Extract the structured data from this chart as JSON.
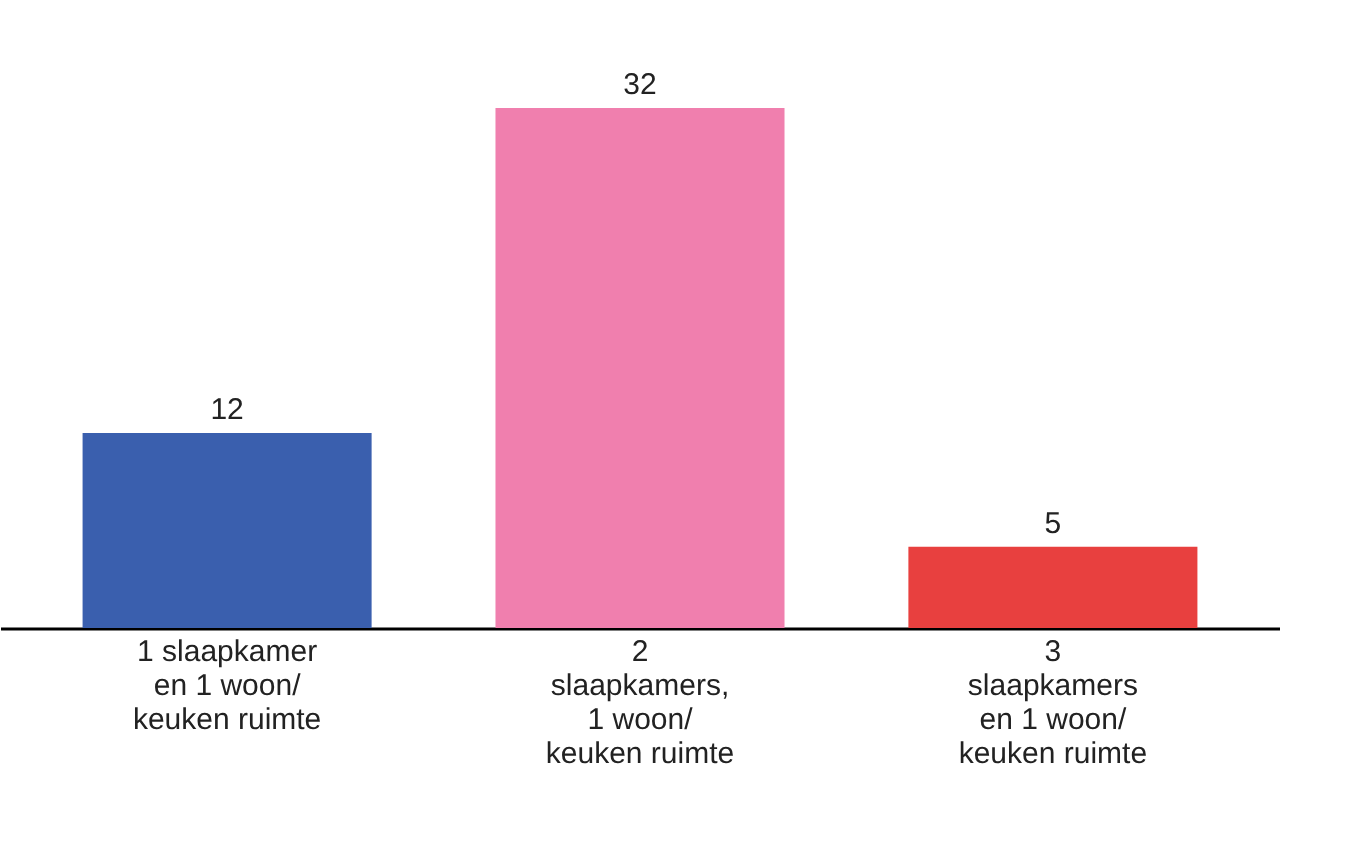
{
  "chart_data": {
    "type": "bar",
    "categories": [
      "1 slaapkamer\nen 1 woon/\nkeuken ruimte",
      "2\nslaapkamers,\n1 woon/\nkeuken ruimte",
      "3\nslaapkamers\nen 1 woon/\nkeuken ruimte"
    ],
    "values": [
      12,
      32,
      5
    ],
    "colors": [
      "#3a5fae",
      "#f07fae",
      "#e8403f"
    ],
    "data_labels": true
  }
}
